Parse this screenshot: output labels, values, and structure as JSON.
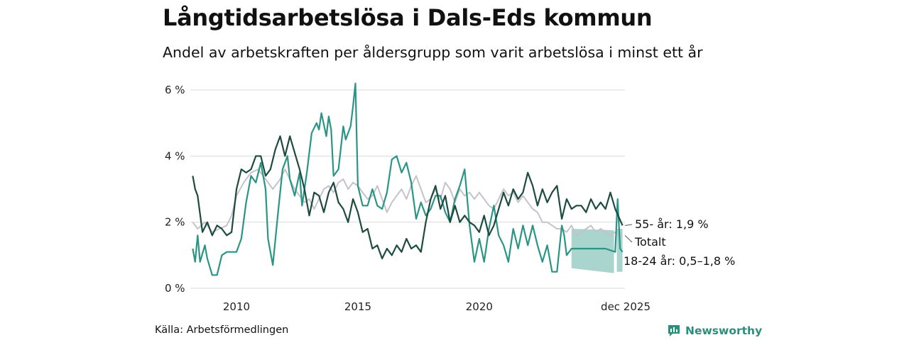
{
  "title": "Långtidsarbetslösa i Dals-Eds kommun",
  "subtitle": "Andel av arbetskraften per åldersgrupp som varit arbetslösa i minst ett år",
  "source": "Källa: Arbetsförmedlingen",
  "brand": {
    "name": "Newsworthy",
    "icon": "newsworthy-logo-icon",
    "color": "#2a8f7d"
  },
  "chart_data": {
    "type": "line",
    "y_ticks": [
      {
        "value": 0,
        "label": "0 %"
      },
      {
        "value": 2,
        "label": "2 %"
      },
      {
        "value": 4,
        "label": "4 %"
      },
      {
        "value": 6,
        "label": "6 %"
      }
    ],
    "x_ticks": [
      {
        "value": 2010,
        "label": "2010"
      },
      {
        "value": 2015,
        "label": "2015"
      },
      {
        "value": 2020,
        "label": "2020"
      },
      {
        "value": 2025.9,
        "label": "dec 2025"
      }
    ],
    "xlim": [
      2008.1,
      2026.0
    ],
    "ylim": [
      0,
      6.5
    ],
    "series": [
      {
        "name": "Totalt",
        "color": "#c4c2ca",
        "label": "Totalt",
        "points": [
          [
            2008.2,
            2.0
          ],
          [
            2008.4,
            1.8
          ],
          [
            2008.7,
            2.0
          ],
          [
            2009.0,
            1.7
          ],
          [
            2009.3,
            1.8
          ],
          [
            2009.6,
            1.9
          ],
          [
            2009.8,
            2.2
          ],
          [
            2010.0,
            2.8
          ],
          [
            2010.3,
            3.2
          ],
          [
            2010.6,
            3.5
          ],
          [
            2010.9,
            3.6
          ],
          [
            2011.2,
            3.3
          ],
          [
            2011.5,
            3.0
          ],
          [
            2011.8,
            3.3
          ],
          [
            2012.0,
            3.6
          ],
          [
            2012.2,
            3.3
          ],
          [
            2012.4,
            3.0
          ],
          [
            2012.6,
            2.8
          ],
          [
            2012.8,
            2.6
          ],
          [
            2013.0,
            2.7
          ],
          [
            2013.2,
            2.4
          ],
          [
            2013.4,
            2.7
          ],
          [
            2013.6,
            3.0
          ],
          [
            2013.8,
            3.1
          ],
          [
            2014.0,
            2.9
          ],
          [
            2014.2,
            3.2
          ],
          [
            2014.4,
            3.3
          ],
          [
            2014.6,
            3.0
          ],
          [
            2014.8,
            3.2
          ],
          [
            2015.0,
            3.1
          ],
          [
            2015.2,
            2.9
          ],
          [
            2015.4,
            2.7
          ],
          [
            2015.6,
            2.8
          ],
          [
            2015.8,
            3.1
          ],
          [
            2016.0,
            2.7
          ],
          [
            2016.2,
            2.3
          ],
          [
            2016.4,
            2.6
          ],
          [
            2016.6,
            2.8
          ],
          [
            2016.8,
            3.0
          ],
          [
            2017.0,
            2.7
          ],
          [
            2017.2,
            3.1
          ],
          [
            2017.4,
            3.4
          ],
          [
            2017.6,
            3.0
          ],
          [
            2017.8,
            2.6
          ],
          [
            2018.0,
            2.7
          ],
          [
            2018.2,
            3.0
          ],
          [
            2018.4,
            2.7
          ],
          [
            2018.6,
            3.2
          ],
          [
            2018.8,
            3.0
          ],
          [
            2019.0,
            2.6
          ],
          [
            2019.2,
            3.0
          ],
          [
            2019.4,
            2.8
          ],
          [
            2019.6,
            2.9
          ],
          [
            2019.8,
            2.7
          ],
          [
            2020.0,
            2.9
          ],
          [
            2020.2,
            2.7
          ],
          [
            2020.4,
            2.5
          ],
          [
            2020.6,
            2.4
          ],
          [
            2020.8,
            2.7
          ],
          [
            2021.0,
            3.0
          ],
          [
            2021.2,
            2.8
          ],
          [
            2021.4,
            2.9
          ],
          [
            2021.6,
            2.6
          ],
          [
            2021.8,
            2.8
          ],
          [
            2022.0,
            2.6
          ],
          [
            2022.2,
            2.4
          ],
          [
            2022.4,
            2.3
          ],
          [
            2022.6,
            2.0
          ],
          [
            2022.8,
            2.0
          ],
          [
            2023.0,
            1.9
          ],
          [
            2023.2,
            1.8
          ],
          [
            2023.4,
            1.8
          ],
          [
            2023.6,
            1.7
          ],
          [
            2023.8,
            1.9
          ],
          [
            2024.0,
            1.6
          ],
          [
            2024.2,
            1.7
          ],
          [
            2024.4,
            1.8
          ],
          [
            2024.6,
            1.9
          ],
          [
            2024.8,
            1.7
          ],
          [
            2025.0,
            1.8
          ],
          [
            2025.2,
            1.7
          ],
          [
            2025.4,
            1.6
          ],
          [
            2025.6,
            1.7
          ],
          [
            2025.9,
            1.6
          ]
        ]
      },
      {
        "name": "18-24 år",
        "color": "#2a9485",
        "label": "18-24 år: 0,5–1,8 %",
        "points": [
          [
            2008.2,
            1.2
          ],
          [
            2008.3,
            0.8
          ],
          [
            2008.4,
            1.6
          ],
          [
            2008.5,
            0.8
          ],
          [
            2008.7,
            1.3
          ],
          [
            2008.8,
            0.9
          ],
          [
            2009.0,
            0.4
          ],
          [
            2009.2,
            0.4
          ],
          [
            2009.4,
            1.0
          ],
          [
            2009.6,
            1.1
          ],
          [
            2009.8,
            1.1
          ],
          [
            2010.0,
            1.1
          ],
          [
            2010.2,
            1.5
          ],
          [
            2010.4,
            2.6
          ],
          [
            2010.6,
            3.4
          ],
          [
            2010.8,
            3.2
          ],
          [
            2011.0,
            3.8
          ],
          [
            2011.2,
            3.0
          ],
          [
            2011.3,
            1.5
          ],
          [
            2011.5,
            0.7
          ],
          [
            2011.7,
            2.2
          ],
          [
            2011.9,
            3.6
          ],
          [
            2012.1,
            4.0
          ],
          [
            2012.2,
            3.3
          ],
          [
            2012.4,
            2.8
          ],
          [
            2012.6,
            3.5
          ],
          [
            2012.7,
            2.5
          ],
          [
            2012.9,
            3.5
          ],
          [
            2013.1,
            4.7
          ],
          [
            2013.3,
            5.0
          ],
          [
            2013.4,
            4.8
          ],
          [
            2013.5,
            5.3
          ],
          [
            2013.7,
            4.6
          ],
          [
            2013.8,
            5.2
          ],
          [
            2013.9,
            4.8
          ],
          [
            2014.0,
            3.4
          ],
          [
            2014.2,
            3.6
          ],
          [
            2014.4,
            4.9
          ],
          [
            2014.5,
            4.5
          ],
          [
            2014.7,
            4.9
          ],
          [
            2014.8,
            5.5
          ],
          [
            2014.9,
            6.2
          ],
          [
            2015.0,
            3.1
          ],
          [
            2015.2,
            2.5
          ],
          [
            2015.4,
            2.5
          ],
          [
            2015.6,
            3.0
          ],
          [
            2015.8,
            2.5
          ],
          [
            2016.0,
            2.4
          ],
          [
            2016.2,
            2.9
          ],
          [
            2016.4,
            3.9
          ],
          [
            2016.6,
            4.0
          ],
          [
            2016.8,
            3.5
          ],
          [
            2017.0,
            3.8
          ],
          [
            2017.2,
            3.2
          ],
          [
            2017.4,
            2.1
          ],
          [
            2017.6,
            2.6
          ],
          [
            2017.8,
            2.2
          ],
          [
            2018.0,
            2.4
          ],
          [
            2018.2,
            2.8
          ],
          [
            2018.4,
            2.8
          ],
          [
            2018.6,
            2.3
          ],
          [
            2018.8,
            2.0
          ],
          [
            2019.0,
            2.7
          ],
          [
            2019.2,
            3.1
          ],
          [
            2019.4,
            3.6
          ],
          [
            2019.6,
            1.9
          ],
          [
            2019.8,
            0.8
          ],
          [
            2020.0,
            1.5
          ],
          [
            2020.2,
            0.8
          ],
          [
            2020.4,
            1.8
          ],
          [
            2020.6,
            2.5
          ],
          [
            2020.8,
            1.6
          ],
          [
            2021.0,
            1.3
          ],
          [
            2021.2,
            0.8
          ],
          [
            2021.4,
            1.8
          ],
          [
            2021.6,
            1.2
          ],
          [
            2021.8,
            1.9
          ],
          [
            2022.0,
            1.3
          ],
          [
            2022.2,
            1.9
          ],
          [
            2022.4,
            1.3
          ],
          [
            2022.6,
            0.8
          ],
          [
            2022.8,
            1.3
          ],
          [
            2023.0,
            0.5
          ],
          [
            2023.2,
            0.5
          ],
          [
            2023.4,
            1.9
          ],
          [
            2023.5,
            1.6
          ],
          [
            2023.6,
            1.0
          ],
          [
            2023.8,
            1.2
          ],
          [
            2024.4,
            1.2
          ],
          [
            2025.2,
            1.2
          ],
          [
            2025.6,
            1.1
          ],
          [
            2025.7,
            2.7
          ],
          [
            2025.8,
            1.2
          ],
          [
            2025.9,
            1.1
          ]
        ],
        "range_band": {
          "from_x": 2023.8,
          "to_x": 2025.9,
          "lower": 0.5,
          "upper": 1.8
        }
      },
      {
        "name": "55- år",
        "color": "#1d4b40",
        "label": "55- år: 1,9 %",
        "points": [
          [
            2008.2,
            3.4
          ],
          [
            2008.3,
            3.0
          ],
          [
            2008.4,
            2.8
          ],
          [
            2008.6,
            1.7
          ],
          [
            2008.8,
            2.0
          ],
          [
            2009.0,
            1.6
          ],
          [
            2009.2,
            1.9
          ],
          [
            2009.4,
            1.8
          ],
          [
            2009.6,
            1.6
          ],
          [
            2009.8,
            1.7
          ],
          [
            2010.0,
            3.0
          ],
          [
            2010.2,
            3.6
          ],
          [
            2010.4,
            3.5
          ],
          [
            2010.6,
            3.6
          ],
          [
            2010.8,
            4.0
          ],
          [
            2011.0,
            4.0
          ],
          [
            2011.2,
            3.4
          ],
          [
            2011.4,
            3.6
          ],
          [
            2011.6,
            4.2
          ],
          [
            2011.8,
            4.6
          ],
          [
            2012.0,
            4.0
          ],
          [
            2012.2,
            4.6
          ],
          [
            2012.4,
            4.1
          ],
          [
            2012.6,
            3.6
          ],
          [
            2012.8,
            3.0
          ],
          [
            2013.0,
            2.2
          ],
          [
            2013.2,
            2.9
          ],
          [
            2013.4,
            2.8
          ],
          [
            2013.6,
            2.3
          ],
          [
            2013.8,
            2.9
          ],
          [
            2014.0,
            3.2
          ],
          [
            2014.2,
            2.6
          ],
          [
            2014.4,
            2.4
          ],
          [
            2014.6,
            2.0
          ],
          [
            2014.8,
            2.7
          ],
          [
            2015.0,
            2.3
          ],
          [
            2015.2,
            1.7
          ],
          [
            2015.4,
            1.8
          ],
          [
            2015.6,
            1.2
          ],
          [
            2015.8,
            1.3
          ],
          [
            2016.0,
            0.9
          ],
          [
            2016.2,
            1.2
          ],
          [
            2016.4,
            1.0
          ],
          [
            2016.6,
            1.3
          ],
          [
            2016.8,
            1.1
          ],
          [
            2017.0,
            1.5
          ],
          [
            2017.2,
            1.2
          ],
          [
            2017.4,
            1.3
          ],
          [
            2017.6,
            1.1
          ],
          [
            2017.8,
            2.0
          ],
          [
            2018.0,
            2.7
          ],
          [
            2018.2,
            3.1
          ],
          [
            2018.4,
            2.4
          ],
          [
            2018.6,
            2.8
          ],
          [
            2018.8,
            2.0
          ],
          [
            2019.0,
            2.5
          ],
          [
            2019.2,
            2.0
          ],
          [
            2019.4,
            2.2
          ],
          [
            2019.6,
            2.0
          ],
          [
            2019.8,
            1.9
          ],
          [
            2020.0,
            1.7
          ],
          [
            2020.2,
            2.2
          ],
          [
            2020.4,
            1.6
          ],
          [
            2020.6,
            1.9
          ],
          [
            2020.8,
            2.4
          ],
          [
            2021.0,
            2.9
          ],
          [
            2021.2,
            2.5
          ],
          [
            2021.4,
            3.0
          ],
          [
            2021.6,
            2.7
          ],
          [
            2021.8,
            2.9
          ],
          [
            2022.0,
            3.5
          ],
          [
            2022.2,
            3.1
          ],
          [
            2022.4,
            2.5
          ],
          [
            2022.6,
            3.0
          ],
          [
            2022.8,
            2.6
          ],
          [
            2023.0,
            2.9
          ],
          [
            2023.2,
            3.1
          ],
          [
            2023.4,
            2.1
          ],
          [
            2023.6,
            2.7
          ],
          [
            2023.8,
            2.4
          ],
          [
            2024.0,
            2.5
          ],
          [
            2024.2,
            2.5
          ],
          [
            2024.4,
            2.3
          ],
          [
            2024.6,
            2.7
          ],
          [
            2024.8,
            2.4
          ],
          [
            2025.0,
            2.6
          ],
          [
            2025.2,
            2.4
          ],
          [
            2025.4,
            2.9
          ],
          [
            2025.6,
            2.4
          ],
          [
            2025.9,
            1.9
          ]
        ]
      }
    ]
  }
}
